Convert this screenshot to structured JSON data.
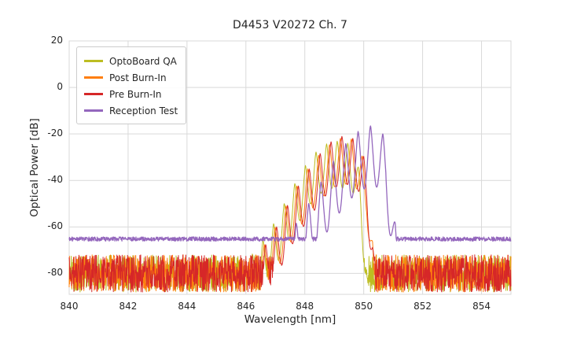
{
  "window": {
    "title": "D4453 V20272 Ch. 7"
  },
  "chart_data": {
    "type": "line",
    "title": "D4453 V20272 Ch. 7",
    "xlabel": "Wavelength [nm]",
    "ylabel": "Optical Power [dB]",
    "xlim": [
      840,
      855
    ],
    "ylim": [
      -89,
      20
    ],
    "xticks": [
      840,
      842,
      844,
      846,
      848,
      850,
      852,
      854
    ],
    "yticks": [
      20,
      0,
      -20,
      -40,
      -60,
      -80
    ],
    "grid": true,
    "grid_color": "#d9d9d9",
    "background": "#ffffff",
    "legend_position": "upper-left",
    "series": [
      {
        "name": "OptoBoard QA",
        "color": "#bcbd22",
        "width": 1.0,
        "seed": 101,
        "noise": {
          "floor": -80,
          "amp": 8
        },
        "mod": {
          "spacing": 0.36,
          "phase": 848.02,
          "depth": 20
        },
        "envelope": [
          [
            846.2,
            -72
          ],
          [
            846.8,
            -62
          ],
          [
            847.3,
            -50
          ],
          [
            847.8,
            -38
          ],
          [
            848.2,
            -30
          ],
          [
            848.6,
            -25
          ],
          [
            849.0,
            -23
          ],
          [
            849.4,
            -23.5
          ],
          [
            849.7,
            -26
          ],
          [
            849.9,
            -40
          ],
          [
            850.1,
            -70
          ],
          [
            850.2,
            -95
          ]
        ]
      },
      {
        "name": "Post Burn-In",
        "color": "#ff7f0e",
        "width": 1.0,
        "seed": 202,
        "noise": {
          "floor": -80,
          "amp": 8
        },
        "mod": {
          "spacing": 0.37,
          "phase": 848.1,
          "depth": 20
        },
        "envelope": [
          [
            846.4,
            -72
          ],
          [
            847.0,
            -60
          ],
          [
            847.6,
            -45
          ],
          [
            848.2,
            -33
          ],
          [
            848.7,
            -26
          ],
          [
            849.1,
            -22
          ],
          [
            849.5,
            -21.5
          ],
          [
            849.8,
            -24
          ],
          [
            850.1,
            -35
          ],
          [
            850.3,
            -65
          ],
          [
            850.4,
            -95
          ]
        ]
      },
      {
        "name": "Pre Burn-In",
        "color": "#d62728",
        "width": 1.0,
        "seed": 303,
        "noise": {
          "floor": -80,
          "amp": 8
        },
        "mod": {
          "spacing": 0.37,
          "phase": 848.15,
          "depth": 21
        },
        "envelope": [
          [
            846.4,
            -73
          ],
          [
            847.0,
            -61
          ],
          [
            847.6,
            -46
          ],
          [
            848.1,
            -36
          ],
          [
            848.6,
            -27
          ],
          [
            849.0,
            -22
          ],
          [
            849.4,
            -20.5
          ],
          [
            849.8,
            -23
          ],
          [
            850.1,
            -33
          ],
          [
            850.3,
            -60
          ],
          [
            850.45,
            -95
          ]
        ]
      },
      {
        "name": "Reception Test",
        "color": "#9467bd",
        "width": 1.3,
        "seed": 404,
        "noise": {
          "floor": -65.2,
          "amp": 0.9
        },
        "mod": {
          "spacing": 0.42,
          "phase": 848.55,
          "depth": 26
        },
        "envelope": [
          [
            847.4,
            -64
          ],
          [
            847.9,
            -55
          ],
          [
            848.4,
            -44
          ],
          [
            848.9,
            -33
          ],
          [
            849.4,
            -24
          ],
          [
            849.8,
            -19
          ],
          [
            850.2,
            -16.5
          ],
          [
            850.5,
            -17
          ],
          [
            850.75,
            -22
          ],
          [
            850.95,
            -45
          ],
          [
            851.1,
            -62
          ],
          [
            851.2,
            -66
          ]
        ]
      }
    ]
  }
}
